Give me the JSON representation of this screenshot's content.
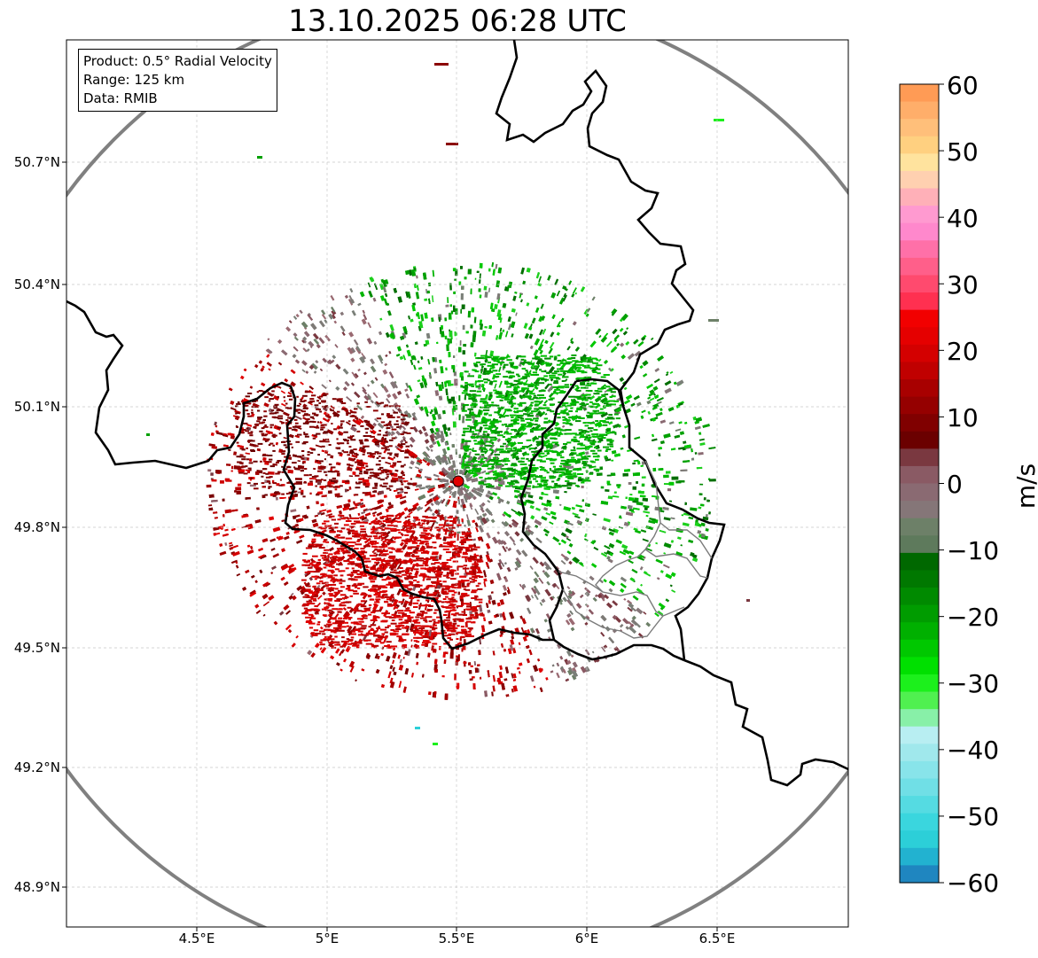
{
  "title": "13.10.2025 06:28 UTC",
  "info": {
    "product": "Product: 0.5° Radial Velocity",
    "range": "Range: 125 km",
    "data": "Data: RMIB"
  },
  "axes": {
    "lat_labels": [
      "50.7°N",
      "50.4°N",
      "50.1°N",
      "49.8°N",
      "49.5°N",
      "49.2°N",
      "48.9°N"
    ],
    "lon_labels": [
      "4.5°E",
      "5°E",
      "5.5°E",
      "6°E",
      "6.5°E"
    ]
  },
  "colorbar": {
    "unit": "m/s",
    "ticks": [
      "60",
      "50",
      "40",
      "30",
      "20",
      "10",
      "0",
      "−10",
      "−20",
      "−30",
      "−40",
      "−50",
      "−60"
    ],
    "colors_top_to_bottom": [
      "#ff9b55",
      "#ffae6a",
      "#ffbf7a",
      "#ffd080",
      "#ffe39e",
      "#ffd0b0",
      "#ffb0b8",
      "#ff9ad0",
      "#ff88cc",
      "#ff70a8",
      "#ff5f8a",
      "#ff4a6e",
      "#ff3050",
      "#f20000",
      "#e50000",
      "#d40000",
      "#c00000",
      "#a80000",
      "#950000",
      "#800000",
      "#6b0000",
      "#7a3840",
      "#8a5a64",
      "#8a6a72",
      "#857678",
      "#6d8068",
      "#5e7a5c",
      "#006800",
      "#007800",
      "#008a00",
      "#009c00",
      "#00b000",
      "#00c800",
      "#00e000",
      "#1cf01c",
      "#50f050",
      "#88f0a8",
      "#b8eef2",
      "#a0e8ec",
      "#88e4ea",
      "#70dfe6",
      "#55dbe2",
      "#3ad6de",
      "#2ccfd8",
      "#22b2d0",
      "#1f86c0"
    ]
  },
  "radar_site": {
    "lat": 49.914,
    "lon": 5.506,
    "color": "#e00000"
  },
  "map_extent": {
    "lon_min": 4.0,
    "lon_max": 7.0,
    "lat_min": 48.8,
    "lat_max": 50.98
  }
}
